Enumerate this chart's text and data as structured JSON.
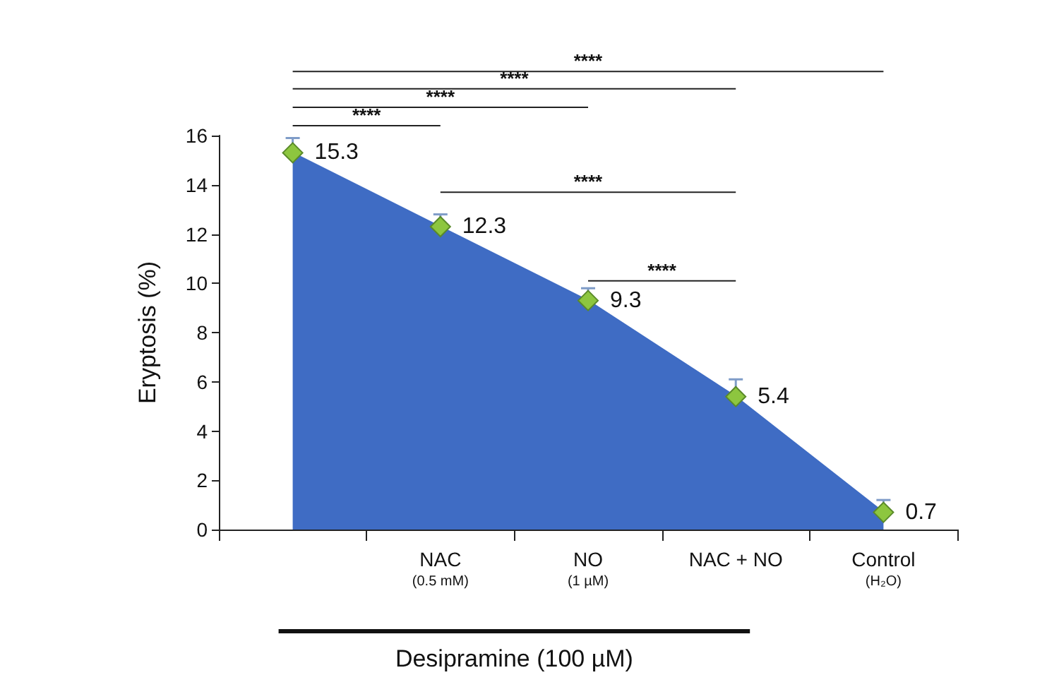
{
  "chart_data": {
    "type": "area",
    "ylabel": "Eryptosis (%)",
    "xlabel": "Desipramine (100 µM)",
    "categories": [
      null,
      "NAC (0.5 mM)",
      "NO (1 µM)",
      "NAC + NO",
      "Control (H₂O)"
    ],
    "series": [
      {
        "color": "#3f6cc4",
        "colors": [
          "#8dc63f",
          "#8dc63f",
          "#8dc63f",
          "#8dc63f",
          "#8dc63f"
        ],
        "values": [
          15.3,
          12.3,
          9.3,
          5.4,
          0.7
        ],
        "errors": [
          [
            15.3,
            15.9
          ],
          [
            12.3,
            12.8
          ],
          [
            9.3,
            9.8
          ],
          [
            5.4,
            6.1
          ],
          [
            0.7,
            1.2
          ]
        ]
      }
    ],
    "ylim": [
      0,
      16
    ],
    "yticks": [
      0,
      2,
      4,
      6,
      8,
      10,
      12,
      14,
      16
    ],
    "marker": "diamond",
    "data_labels": true,
    "grid": false,
    "annotations": [
      "****",
      "****",
      "****",
      "****",
      "****",
      "****"
    ]
  }
}
